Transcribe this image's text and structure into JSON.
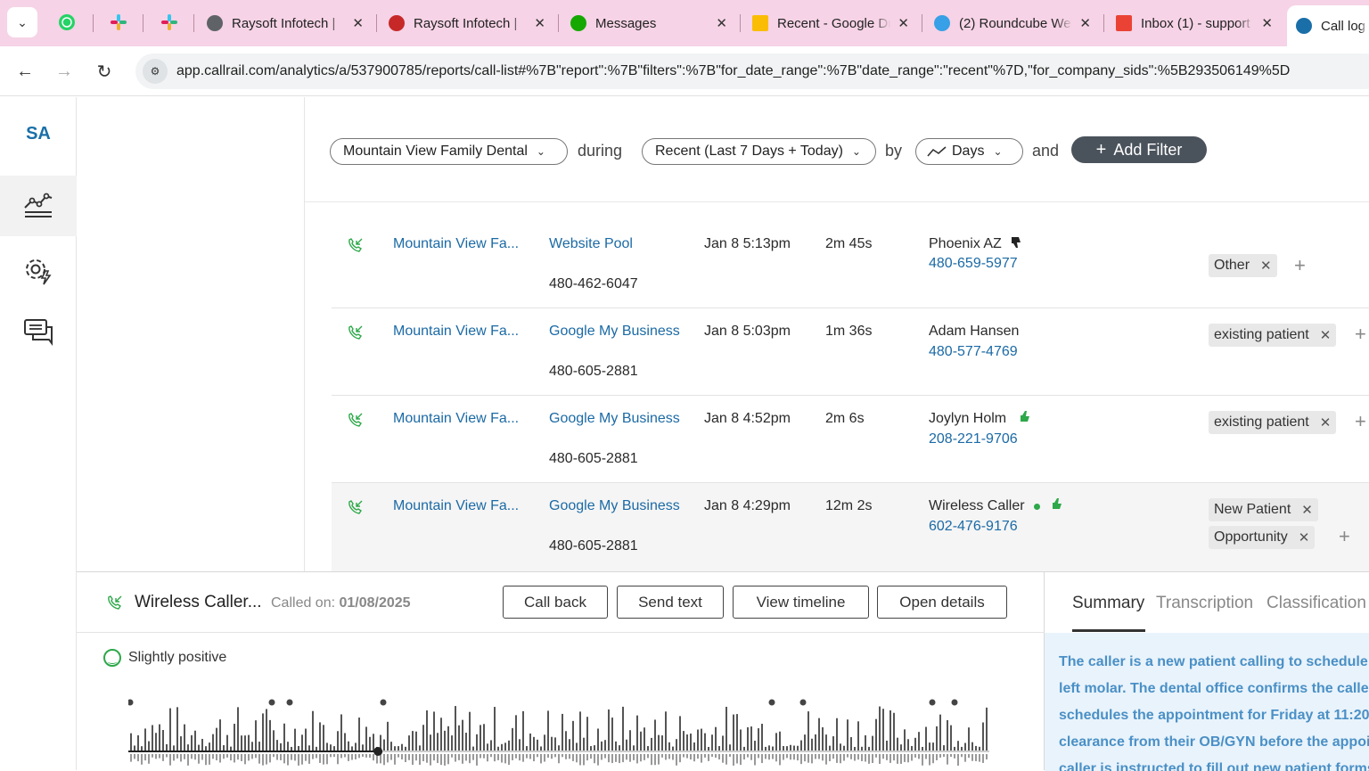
{
  "browser": {
    "tabs": [
      {
        "title": "Raysoft Infotech | ",
        "color": "#5f6368"
      },
      {
        "title": "Raysoft Infotech | ",
        "color": "#c62828"
      },
      {
        "title": "Messages",
        "color": "#14a800"
      },
      {
        "title": "Recent - Google Dri",
        "color": "#fbbc04"
      },
      {
        "title": "(2) Roundcube Web",
        "color": "#37a0e6"
      },
      {
        "title": "Inbox (1) - support",
        "color": "#ea4335"
      },
      {
        "title": "Call log",
        "color": "#1a6fa8"
      }
    ],
    "pinned_tabs": [
      "whatsapp-icon",
      "slack-icon",
      "slack-icon"
    ],
    "url": "app.callrail.com/analytics/a/537900785/reports/call-list#%7B\"report\":%7B\"filters\":%7B\"for_date_range\":%7B\"date_range\":\"recent\"%7D,\"for_company_sids\":%5B293506149%5D"
  },
  "rail": {
    "logo": "SA",
    "items": [
      "analytics-icon",
      "settings-bolt-icon",
      "chat-icon"
    ]
  },
  "filters": {
    "company": "Mountain View Family Dental",
    "during": "during",
    "date_range": "Recent (Last 7 Days + Today)",
    "by": "by",
    "interval": "Days",
    "and": "and",
    "add_filter": "Add Filter"
  },
  "calls": [
    {
      "company": "Mountain View Fa...",
      "source": "Website Pool",
      "tracking_number": "480-462-6047",
      "date": "Jan 8 5:13pm",
      "duration": "2m 45s",
      "caller": "Phoenix AZ",
      "caller_number": "480-659-5977",
      "rating": "thumbs-down",
      "tags": [
        "Other"
      ]
    },
    {
      "company": "Mountain View Fa...",
      "source": "Google My Business",
      "tracking_number": "480-605-2881",
      "date": "Jan 8 5:03pm",
      "duration": "1m 36s",
      "caller": "Adam Hansen",
      "caller_number": "480-577-4769",
      "rating": "",
      "tags": [
        "existing patient"
      ]
    },
    {
      "company": "Mountain View Fa...",
      "source": "Google My Business",
      "tracking_number": "480-605-2881",
      "date": "Jan 8 4:52pm",
      "duration": "2m 6s",
      "caller": "Joylyn Holm",
      "caller_number": "208-221-9706",
      "rating": "thumbs-up",
      "tags": [
        "existing patient"
      ]
    },
    {
      "company": "Mountain View Fa...",
      "source": "Google My Business",
      "tracking_number": "480-605-2881",
      "date": "Jan 8 4:29pm",
      "duration": "12m 2s",
      "caller": "Wireless Caller",
      "caller_number": "602-476-9176",
      "rating": "thumbs-up",
      "tags": [
        "New Patient",
        "Opportunity"
      ]
    }
  ],
  "detail": {
    "caller": "Wireless Caller...",
    "called_on_label": "Called on:",
    "called_on_date": "01/08/2025",
    "buttons": {
      "call_back": "Call back",
      "send_text": "Send text",
      "view_timeline": "View timeline",
      "open_details": "Open details"
    },
    "sentiment": "Slightly positive",
    "playback_progress": 0.29
  },
  "summary": {
    "tabs": [
      "Summary",
      "Transcription",
      "Classification"
    ],
    "lines": [
      "The caller is a new patient calling to schedule an",
      "left molar. The dental office confirms the caller",
      "schedules the appointment for Friday at 11:20",
      "clearance from their OB/GYN before the appoint",
      "caller is instructed to fill out new patient forms"
    ]
  }
}
